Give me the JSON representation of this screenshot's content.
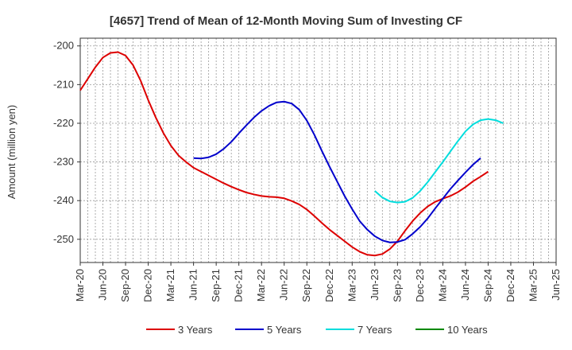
{
  "chart_data": {
    "type": "line",
    "title": "[4657]  Trend of Mean of 12-Month Moving Sum of Investing CF",
    "xlabel": "",
    "ylabel": "Amount (million yen)",
    "ylim": [
      -256,
      -198
    ],
    "yticks": [
      -200,
      -210,
      -220,
      -230,
      -240,
      -250
    ],
    "ytick_labels": [
      "-200",
      "-210",
      "-220",
      "-230",
      "-240",
      "-250"
    ],
    "x_start": "Mar-20",
    "x_end": "Jun-25",
    "xtick_labels": [
      "Mar-20",
      "Jun-20",
      "Sep-20",
      "Dec-20",
      "Mar-21",
      "Jun-21",
      "Sep-21",
      "Dec-21",
      "Mar-22",
      "Jun-22",
      "Sep-22",
      "Dec-22",
      "Mar-23",
      "Jun-23",
      "Sep-23",
      "Dec-23",
      "Mar-24",
      "Jun-24",
      "Sep-24",
      "Dec-24",
      "Mar-25",
      "Jun-25"
    ],
    "grid": true,
    "legend_position": "bottom",
    "series": [
      {
        "name": "3 Years",
        "color": "#dd0000",
        "start_index": 0,
        "values": [
          -211.5,
          -208.5,
          -205.5,
          -203,
          -201.8,
          -201.6,
          -202.5,
          -205,
          -209,
          -214,
          -218.5,
          -222.5,
          -225.8,
          -228.3,
          -230,
          -231.5,
          -232.5,
          -233.5,
          -234.5,
          -235.5,
          -236.4,
          -237.2,
          -237.9,
          -238.4,
          -238.8,
          -239,
          -239.1,
          -239.4,
          -240.1,
          -241,
          -242.3,
          -244,
          -245.8,
          -247.5,
          -249,
          -250.5,
          -252,
          -253.2,
          -254,
          -254.2,
          -253.8,
          -252.5,
          -250.5,
          -247.8,
          -245.3,
          -243.2,
          -241.5,
          -240.3,
          -239.5,
          -238.8,
          -237.8,
          -236.5,
          -235,
          -233.8,
          -232.5
        ]
      },
      {
        "name": "5 Years",
        "color": "#0000cc",
        "start_index": 15,
        "values": [
          -229,
          -229.1,
          -228.8,
          -228,
          -226.6,
          -224.8,
          -222.6,
          -220.5,
          -218.5,
          -216.8,
          -215.5,
          -214.6,
          -214.4,
          -214.9,
          -216.5,
          -219.3,
          -223,
          -227.2,
          -231.2,
          -235,
          -238.8,
          -242.2,
          -245.3,
          -247.5,
          -249.2,
          -250.3,
          -250.8,
          -250.7,
          -250.1,
          -248.6,
          -246.8,
          -244.6,
          -242,
          -239.5,
          -237,
          -234.8,
          -232.7,
          -230.7,
          -229
        ]
      },
      {
        "name": "7 Years",
        "color": "#00dddd",
        "start_index": 39,
        "values": [
          -237.5,
          -239.2,
          -240.2,
          -240.5,
          -240.3,
          -239.3,
          -237.5,
          -235.2,
          -232.6,
          -230,
          -227.3,
          -224.6,
          -222.1,
          -220.3,
          -219.2,
          -218.9,
          -219.2,
          -220
        ]
      },
      {
        "name": "10 Years",
        "color": "#008800",
        "start_index": 0,
        "values": []
      }
    ]
  }
}
